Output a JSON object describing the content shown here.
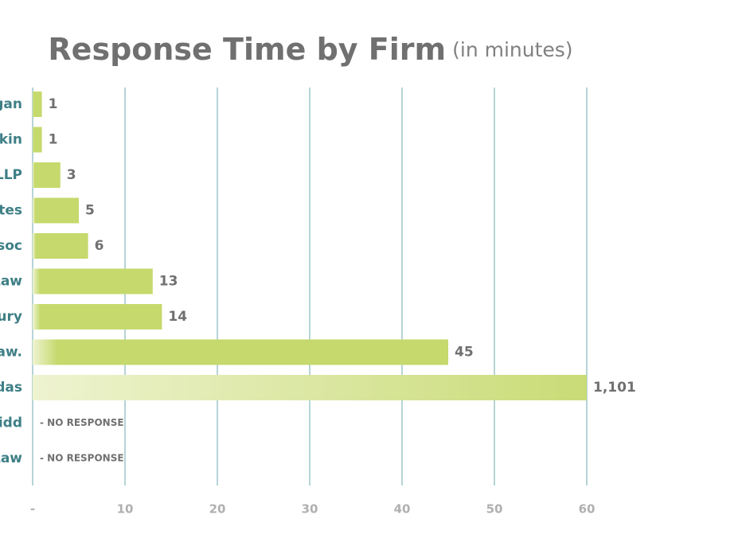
{
  "chart_data": {
    "type": "bar",
    "orientation": "horizontal",
    "title": "Response Time by Firm",
    "subtitle": "(in minutes)",
    "categories": [
      "gan",
      "kin",
      "LLP",
      "tes",
      "soc",
      "Law",
      "ury",
      "aw.",
      "das",
      "idd",
      "Law"
    ],
    "values": [
      1,
      1,
      3,
      5,
      6,
      13,
      14,
      45,
      1101,
      null,
      null
    ],
    "value_labels": [
      "1",
      "1",
      "3",
      "5",
      "6",
      "13",
      "14",
      "45",
      "1,101",
      "- NO RESPONSE",
      "- NO RESPONSE"
    ],
    "color": "#c5d96d",
    "xlim": [
      0,
      60
    ],
    "xticks": [
      {
        "value": 0,
        "label": "-"
      },
      10,
      20,
      30,
      40,
      50,
      60
    ],
    "grid": true
  }
}
